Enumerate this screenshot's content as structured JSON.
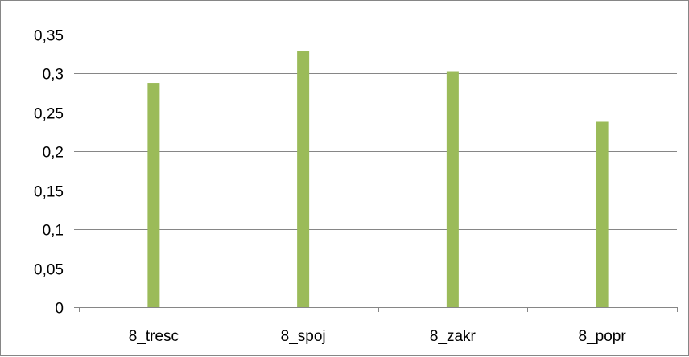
{
  "chart_data": {
    "type": "bar",
    "title": "",
    "xlabel": "",
    "ylabel": "",
    "categories": [
      "8_tresc",
      "8_spoj",
      "8_zakr",
      "8_popr"
    ],
    "values": [
      0.288,
      0.329,
      0.303,
      0.238
    ],
    "ylim": [
      0,
      0.35
    ],
    "yticks": [
      "0",
      "0,05",
      "0,1",
      "0,15",
      "0,2",
      "0,25",
      "0,3",
      "0,35"
    ],
    "grid": true,
    "legend": "none",
    "bar_color": "#9BBB59",
    "grid_color": "#868686",
    "axis_color": "#868686"
  }
}
